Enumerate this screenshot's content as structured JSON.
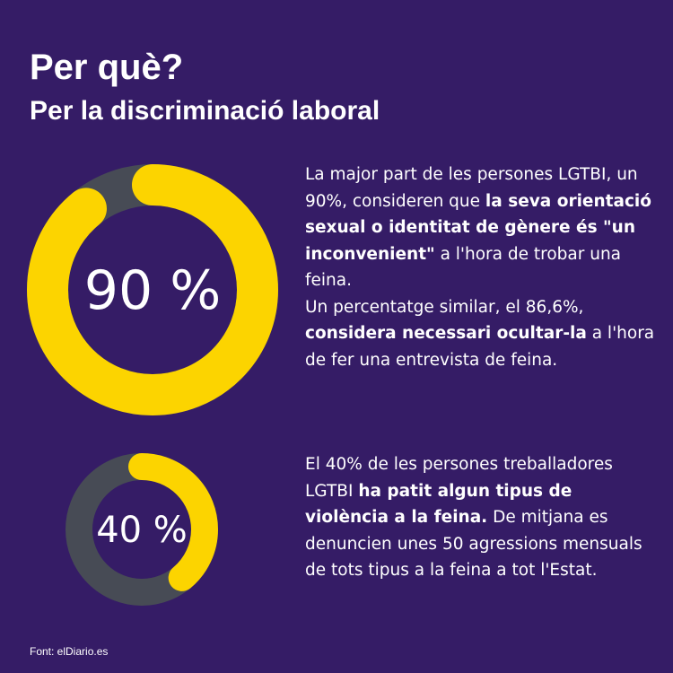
{
  "title": "Per què?",
  "subtitle": "Per la discriminació laboral",
  "colors": {
    "background": "#351c66",
    "accent": "#fcd400",
    "track": "#474b55",
    "text": "#ffffff"
  },
  "chart_data": [
    {
      "type": "pie",
      "variant": "donut",
      "value": 90,
      "max": 100,
      "label": "90 %"
    },
    {
      "type": "pie",
      "variant": "donut",
      "value": 40,
      "max": 100,
      "label": "40 %"
    }
  ],
  "paragraphs": [
    {
      "segments": [
        {
          "text": "La major part de les persones LGTBI, un 90%, consideren que ",
          "bold": false
        },
        {
          "text": "la seva orientació sexual o identitat de gènere és \"un inconvenient\"",
          "bold": true
        },
        {
          "text": " a l'hora de trobar una feina.",
          "bold": false
        },
        {
          "text": "\n",
          "bold": false
        },
        {
          "text": "Un percentatge similar, el 86,6%, ",
          "bold": false
        },
        {
          "text": "considera necessari ocultar-la",
          "bold": true
        },
        {
          "text": " a l'hora de fer una entrevista de feina.",
          "bold": false
        }
      ]
    },
    {
      "segments": [
        {
          "text": "El 40% de les persones treballadores LGTBI ",
          "bold": false
        },
        {
          "text": "ha patit algun tipus de violència a la feina.",
          "bold": true
        },
        {
          "text": " De mitjana es denuncien unes 50 agressions mensuals de tots tipus a la feina a tot l'Estat.",
          "bold": false
        }
      ]
    }
  ],
  "source": "Font: elDiario.es"
}
